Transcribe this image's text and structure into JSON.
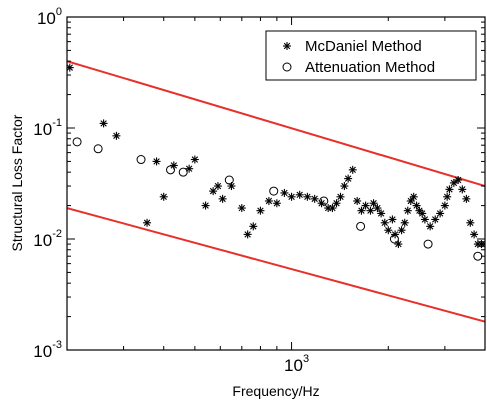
{
  "chart_data": {
    "type": "scatter",
    "title": "",
    "xlabel": "Frequency/Hz",
    "ylabel": "Structural Loss Factor",
    "xscale": "log",
    "yscale": "log",
    "xlim": [
      200,
      4000
    ],
    "ylim": [
      0.001,
      1
    ],
    "xticks": [
      {
        "base": "10",
        "exp": "3",
        "value": 1000
      }
    ],
    "yticks": [
      {
        "base": "10",
        "exp": "0",
        "value": 1
      },
      {
        "base": "10",
        "exp": "-1",
        "value": 0.1
      },
      {
        "base": "10",
        "exp": "-2",
        "value": 0.01
      },
      {
        "base": "10",
        "exp": "-3",
        "value": 0.001
      }
    ],
    "grid": false,
    "legend_position": "top-right",
    "colors": {
      "bounds": "#e8302a",
      "markers": "#000000",
      "axes": "#000000"
    },
    "series": [
      {
        "name": "McDaniel Method",
        "marker": "star",
        "x": [
          204,
          260,
          285,
          355,
          380,
          400,
          430,
          480,
          500,
          540,
          570,
          590,
          610,
          650,
          700,
          730,
          760,
          800,
          850,
          900,
          950,
          1000,
          1060,
          1120,
          1180,
          1240,
          1300,
          1340,
          1380,
          1420,
          1460,
          1500,
          1550,
          1600,
          1650,
          1700,
          1760,
          1800,
          1850,
          1900,
          1950,
          2000,
          2060,
          2100,
          2150,
          2200,
          2250,
          2300,
          2350,
          2400,
          2450,
          2500,
          2550,
          2600,
          2700,
          2800,
          2900,
          3000,
          3050,
          3100,
          3200,
          3300,
          3400,
          3500,
          3600,
          3700,
          3800,
          3900,
          4000
        ],
        "y": [
          0.35,
          0.11,
          0.085,
          0.014,
          0.05,
          0.024,
          0.046,
          0.043,
          0.052,
          0.02,
          0.027,
          0.03,
          0.023,
          0.03,
          0.019,
          0.011,
          0.013,
          0.018,
          0.022,
          0.021,
          0.026,
          0.024,
          0.025,
          0.024,
          0.023,
          0.021,
          0.019,
          0.019,
          0.021,
          0.024,
          0.03,
          0.035,
          0.042,
          0.022,
          0.018,
          0.02,
          0.018,
          0.021,
          0.019,
          0.017,
          0.014,
          0.012,
          0.015,
          0.011,
          0.009,
          0.012,
          0.014,
          0.018,
          0.022,
          0.024,
          0.02,
          0.018,
          0.017,
          0.015,
          0.013,
          0.015,
          0.017,
          0.02,
          0.024,
          0.028,
          0.032,
          0.034,
          0.028,
          0.023,
          0.014,
          0.011,
          0.009,
          0.009,
          0.009
        ]
      },
      {
        "name": "Attenuation Method",
        "marker": "circle",
        "x": [
          215,
          250,
          340,
          420,
          460,
          640,
          880,
          1260,
          1640,
          2090,
          2660,
          3800
        ],
        "y": [
          0.075,
          0.065,
          0.052,
          0.042,
          0.04,
          0.034,
          0.027,
          0.022,
          0.013,
          0.01,
          0.009,
          0.007
        ]
      }
    ],
    "bounds": [
      {
        "x": [
          200,
          4000
        ],
        "y": [
          0.4,
          0.03
        ]
      },
      {
        "x": [
          200,
          4000
        ],
        "y": [
          0.019,
          0.0018
        ]
      }
    ]
  }
}
